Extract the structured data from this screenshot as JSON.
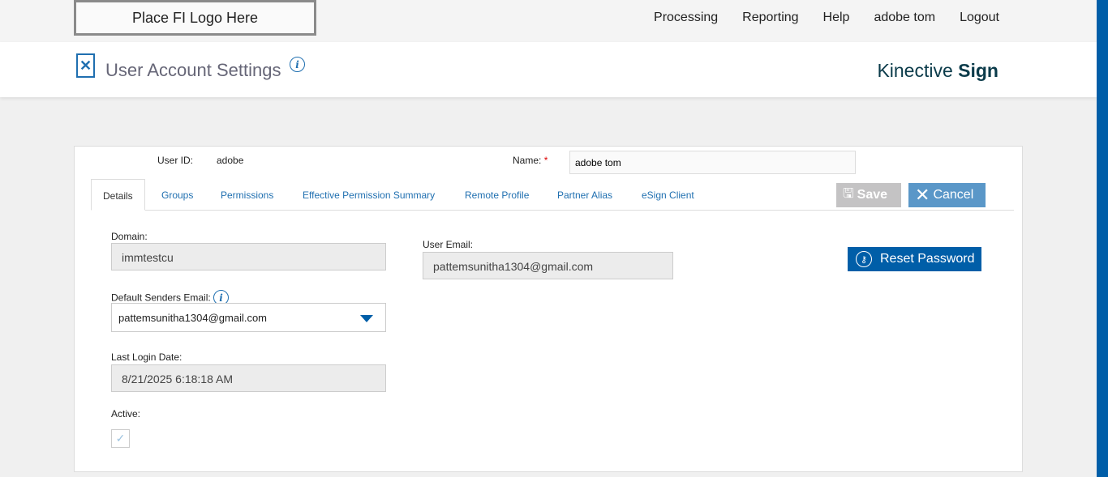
{
  "topbar": {
    "logo": "Place FI Logo Here",
    "nav": [
      "Processing",
      "Reporting",
      "Help",
      "adobe tom",
      "Logout"
    ]
  },
  "header": {
    "title": "User Account Settings",
    "brand_light": "Kinective",
    "brand_bold": "Sign"
  },
  "user": {
    "id_label": "User ID:",
    "id_value": "adobe",
    "name_label": "Name:",
    "name_required": "*",
    "name_value": "adobe tom"
  },
  "tabs": [
    "Details",
    "Groups",
    "Permissions",
    "Effective Permission Summary",
    "Remote Profile",
    "Partner Alias",
    "eSign Client"
  ],
  "actions": {
    "save": "Save",
    "cancel": "Cancel",
    "reset": "Reset Password"
  },
  "details": {
    "domain_label": "Domain:",
    "domain_value": "immtestcu",
    "user_email_label": "User Email:",
    "user_email_value": "pattemsunitha1304@gmail.com",
    "senders_label": "Default Senders Email:",
    "senders_value": "pattemsunitha1304@gmail.com",
    "last_login_label": "Last Login Date:",
    "last_login_value": "8/21/2025 6:18:18 AM",
    "active_label": "Active:",
    "active": true
  },
  "colors": {
    "primary": "#005ea8",
    "cancel": "#5a97c8",
    "save_disabled": "#c4c3c4"
  }
}
